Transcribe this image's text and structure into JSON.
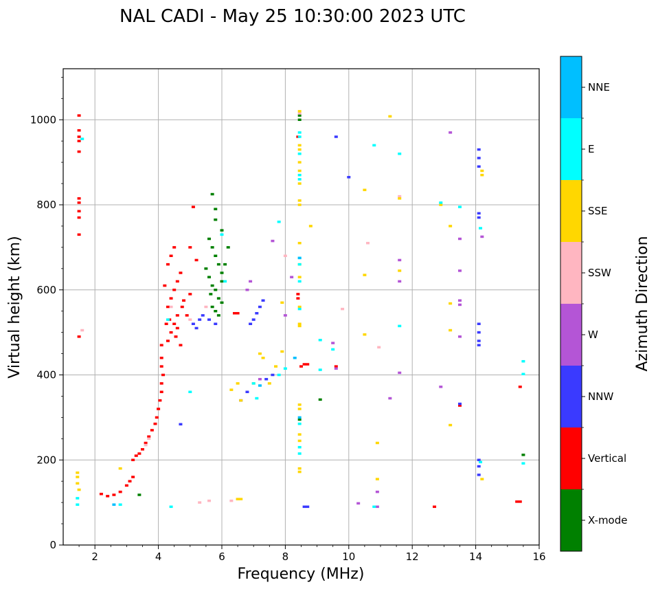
{
  "chart_data": {
    "type": "scatter",
    "title": "NAL CADI - May 25 10:30:00 2023 UTC",
    "xlabel": "Frequency (MHz)",
    "ylabel": "Virtual height (km)",
    "xlim": [
      1,
      16
    ],
    "ylim": [
      0,
      1120
    ],
    "xticks": [
      2,
      4,
      6,
      8,
      10,
      12,
      14,
      16
    ],
    "yticks": [
      0,
      200,
      400,
      600,
      800,
      1000
    ],
    "grid": true,
    "colorbar_label": "Azimuth Direction",
    "categories": [
      {
        "name": "X-mode",
        "color": "#008000"
      },
      {
        "name": "Vertical",
        "color": "#ff0000"
      },
      {
        "name": "NNW",
        "color": "#3a3aff"
      },
      {
        "name": "W",
        "color": "#b455d6"
      },
      {
        "name": "SSW",
        "color": "#ffb6c1"
      },
      {
        "name": "SSE",
        "color": "#ffd700"
      },
      {
        "name": "E",
        "color": "#00ffff"
      },
      {
        "name": "NNE",
        "color": "#00bfff"
      }
    ],
    "series": [
      {
        "name": "Vertical",
        "points": [
          [
            1.5,
            1010
          ],
          [
            1.5,
            975
          ],
          [
            1.5,
            960
          ],
          [
            1.5,
            950
          ],
          [
            1.5,
            925
          ],
          [
            1.5,
            815
          ],
          [
            1.5,
            805
          ],
          [
            1.5,
            785
          ],
          [
            1.5,
            770
          ],
          [
            1.5,
            730
          ],
          [
            1.5,
            490
          ],
          [
            2.2,
            120
          ],
          [
            2.4,
            115
          ],
          [
            2.6,
            118
          ],
          [
            2.8,
            125
          ],
          [
            3.0,
            140
          ],
          [
            3.1,
            150
          ],
          [
            3.2,
            160
          ],
          [
            3.2,
            200
          ],
          [
            3.3,
            210
          ],
          [
            3.4,
            215
          ],
          [
            3.5,
            225
          ],
          [
            3.6,
            240
          ],
          [
            3.7,
            255
          ],
          [
            3.8,
            270
          ],
          [
            3.9,
            285
          ],
          [
            3.95,
            300
          ],
          [
            4.0,
            320
          ],
          [
            4.05,
            340
          ],
          [
            4.1,
            360
          ],
          [
            4.1,
            380
          ],
          [
            4.15,
            400
          ],
          [
            4.1,
            420
          ],
          [
            4.1,
            440
          ],
          [
            4.1,
            470
          ],
          [
            4.3,
            480
          ],
          [
            4.4,
            500
          ],
          [
            4.5,
            520
          ],
          [
            4.6,
            540
          ],
          [
            4.3,
            560
          ],
          [
            4.4,
            580
          ],
          [
            4.5,
            600
          ],
          [
            4.6,
            620
          ],
          [
            4.7,
            640
          ],
          [
            4.3,
            660
          ],
          [
            4.4,
            680
          ],
          [
            4.5,
            700
          ],
          [
            4.25,
            520
          ],
          [
            4.35,
            530
          ],
          [
            4.55,
            490
          ],
          [
            4.6,
            510
          ],
          [
            4.75,
            560
          ],
          [
            4.8,
            575
          ],
          [
            4.2,
            610
          ],
          [
            4.9,
            540
          ],
          [
            5.0,
            590
          ],
          [
            4.7,
            470
          ],
          [
            5.0,
            700
          ],
          [
            5.2,
            670
          ],
          [
            5.1,
            795
          ],
          [
            6.4,
            545
          ],
          [
            6.5,
            545
          ],
          [
            8.4,
            590
          ],
          [
            8.4,
            580
          ],
          [
            8.4,
            960
          ],
          [
            8.6,
            425
          ],
          [
            8.7,
            425
          ],
          [
            8.5,
            420
          ],
          [
            9.6,
            420
          ],
          [
            12.7,
            90
          ],
          [
            13.5,
            328
          ],
          [
            15.3,
            102
          ],
          [
            15.4,
            102
          ],
          [
            15.4,
            372
          ]
        ]
      },
      {
        "name": "X-mode",
        "points": [
          [
            3.4,
            118
          ],
          [
            5.7,
            825
          ],
          [
            5.8,
            790
          ],
          [
            5.8,
            765
          ],
          [
            6.0,
            740
          ],
          [
            5.6,
            720
          ],
          [
            5.7,
            700
          ],
          [
            5.8,
            680
          ],
          [
            5.9,
            660
          ],
          [
            6.0,
            640
          ],
          [
            5.6,
            630
          ],
          [
            5.7,
            610
          ],
          [
            5.8,
            600
          ],
          [
            5.9,
            580
          ],
          [
            6.0,
            570
          ],
          [
            5.7,
            560
          ],
          [
            5.8,
            550
          ],
          [
            5.9,
            540
          ],
          [
            6.1,
            660
          ],
          [
            6.0,
            620
          ],
          [
            5.5,
            650
          ],
          [
            5.65,
            590
          ],
          [
            6.2,
            700
          ],
          [
            8.45,
            1010
          ],
          [
            8.45,
            1000
          ],
          [
            8.45,
            295
          ],
          [
            9.1,
            342
          ],
          [
            15.5,
            212
          ]
        ]
      },
      {
        "name": "NNW",
        "points": [
          [
            4.7,
            284
          ],
          [
            5.2,
            510
          ],
          [
            5.1,
            520
          ],
          [
            5.3,
            530
          ],
          [
            5.4,
            540
          ],
          [
            5.6,
            530
          ],
          [
            5.8,
            520
          ],
          [
            6.6,
            340
          ],
          [
            6.8,
            360
          ],
          [
            7.0,
            530
          ],
          [
            7.1,
            545
          ],
          [
            7.2,
            560
          ],
          [
            7.3,
            575
          ],
          [
            6.9,
            520
          ],
          [
            7.4,
            390
          ],
          [
            7.6,
            400
          ],
          [
            8.6,
            90
          ],
          [
            8.7,
            90
          ],
          [
            9.6,
            960
          ],
          [
            10.0,
            865
          ],
          [
            13.5,
            332
          ],
          [
            14.1,
            930
          ],
          [
            14.1,
            910
          ],
          [
            14.1,
            890
          ],
          [
            14.1,
            780
          ],
          [
            14.1,
            770
          ],
          [
            14.1,
            520
          ],
          [
            14.1,
            500
          ],
          [
            14.1,
            480
          ],
          [
            14.1,
            470
          ],
          [
            14.1,
            200
          ],
          [
            14.1,
            185
          ],
          [
            14.1,
            165
          ]
        ]
      },
      {
        "name": "W",
        "points": [
          [
            6.8,
            600
          ],
          [
            6.9,
            620
          ],
          [
            7.2,
            390
          ],
          [
            7.6,
            715
          ],
          [
            8.0,
            540
          ],
          [
            8.2,
            630
          ],
          [
            9.5,
            475
          ],
          [
            9.6,
            415
          ],
          [
            10.3,
            98
          ],
          [
            10.9,
            90
          ],
          [
            10.9,
            125
          ],
          [
            11.3,
            345
          ],
          [
            11.6,
            405
          ],
          [
            11.6,
            620
          ],
          [
            11.6,
            670
          ],
          [
            12.9,
            372
          ],
          [
            13.2,
            970
          ],
          [
            13.5,
            720
          ],
          [
            13.5,
            645
          ],
          [
            13.5,
            575
          ],
          [
            13.5,
            565
          ],
          [
            13.5,
            490
          ],
          [
            14.2,
            725
          ]
        ]
      },
      {
        "name": "SSW",
        "points": [
          [
            1.6,
            505
          ],
          [
            3.6,
            235
          ],
          [
            3.7,
            250
          ],
          [
            4.4,
            560
          ],
          [
            5.5,
            560
          ],
          [
            5.0,
            530
          ],
          [
            5.3,
            100
          ],
          [
            5.6,
            104
          ],
          [
            6.3,
            104
          ],
          [
            6.5,
            108
          ],
          [
            8.0,
            680
          ],
          [
            8.45,
            1015
          ],
          [
            9.8,
            555
          ],
          [
            10.6,
            710
          ],
          [
            10.95,
            465
          ],
          [
            11.6,
            820
          ]
        ]
      },
      {
        "name": "SSE",
        "points": [
          [
            1.45,
            170
          ],
          [
            1.45,
            160
          ],
          [
            1.45,
            145
          ],
          [
            1.5,
            130
          ],
          [
            2.8,
            180
          ],
          [
            6.5,
            108
          ],
          [
            6.6,
            108
          ],
          [
            6.5,
            380
          ],
          [
            6.6,
            340
          ],
          [
            6.3,
            365
          ],
          [
            7.0,
            380
          ],
          [
            7.2,
            450
          ],
          [
            7.3,
            440
          ],
          [
            7.5,
            380
          ],
          [
            7.7,
            420
          ],
          [
            7.9,
            570
          ],
          [
            7.9,
            455
          ],
          [
            8.45,
            1020
          ],
          [
            8.45,
            940
          ],
          [
            8.45,
            930
          ],
          [
            8.45,
            900
          ],
          [
            8.45,
            880
          ],
          [
            8.45,
            850
          ],
          [
            8.45,
            810
          ],
          [
            8.45,
            800
          ],
          [
            8.45,
            710
          ],
          [
            8.45,
            660
          ],
          [
            8.45,
            630
          ],
          [
            8.45,
            560
          ],
          [
            8.45,
            520
          ],
          [
            8.45,
            515
          ],
          [
            8.45,
            330
          ],
          [
            8.45,
            320
          ],
          [
            8.45,
            260
          ],
          [
            8.45,
            245
          ],
          [
            8.45,
            180
          ],
          [
            8.45,
            172
          ],
          [
            8.8,
            750
          ],
          [
            10.5,
            835
          ],
          [
            10.5,
            635
          ],
          [
            10.5,
            495
          ],
          [
            10.9,
            240
          ],
          [
            10.9,
            155
          ],
          [
            11.3,
            1008
          ],
          [
            11.6,
            815
          ],
          [
            11.6,
            645
          ],
          [
            13.2,
            750
          ],
          [
            13.2,
            568
          ],
          [
            13.2,
            505
          ],
          [
            13.2,
            282
          ],
          [
            12.9,
            800
          ],
          [
            14.2,
            880
          ],
          [
            14.2,
            870
          ],
          [
            14.2,
            155
          ]
        ]
      },
      {
        "name": "E",
        "points": [
          [
            1.45,
            110
          ],
          [
            1.45,
            95
          ],
          [
            1.6,
            955
          ],
          [
            2.8,
            95
          ],
          [
            4.4,
            90
          ],
          [
            4.3,
            530
          ],
          [
            5.0,
            360
          ],
          [
            6.0,
            730
          ],
          [
            6.1,
            620
          ],
          [
            7.1,
            345
          ],
          [
            7.0,
            380
          ],
          [
            7.8,
            760
          ],
          [
            7.8,
            400
          ],
          [
            8.0,
            415
          ],
          [
            8.45,
            970
          ],
          [
            8.45,
            960
          ],
          [
            8.45,
            920
          ],
          [
            8.45,
            870
          ],
          [
            8.45,
            860
          ],
          [
            8.45,
            675
          ],
          [
            8.45,
            660
          ],
          [
            8.45,
            620
          ],
          [
            8.45,
            555
          ],
          [
            8.45,
            285
          ],
          [
            8.45,
            230
          ],
          [
            8.45,
            215
          ],
          [
            9.1,
            482
          ],
          [
            9.1,
            412
          ],
          [
            9.5,
            460
          ],
          [
            10.8,
            940
          ],
          [
            10.8,
            90
          ],
          [
            11.6,
            920
          ],
          [
            11.6,
            515
          ],
          [
            12.9,
            805
          ],
          [
            13.5,
            795
          ],
          [
            14.15,
            745
          ],
          [
            14.15,
            195
          ],
          [
            15.5,
            432
          ],
          [
            15.5,
            402
          ],
          [
            15.5,
            192
          ]
        ]
      },
      {
        "name": "NNE",
        "points": [
          [
            2.6,
            95
          ],
          [
            7.2,
            375
          ],
          [
            8.3,
            440
          ],
          [
            8.45,
            675
          ],
          [
            8.45,
            300
          ]
        ]
      }
    ]
  }
}
